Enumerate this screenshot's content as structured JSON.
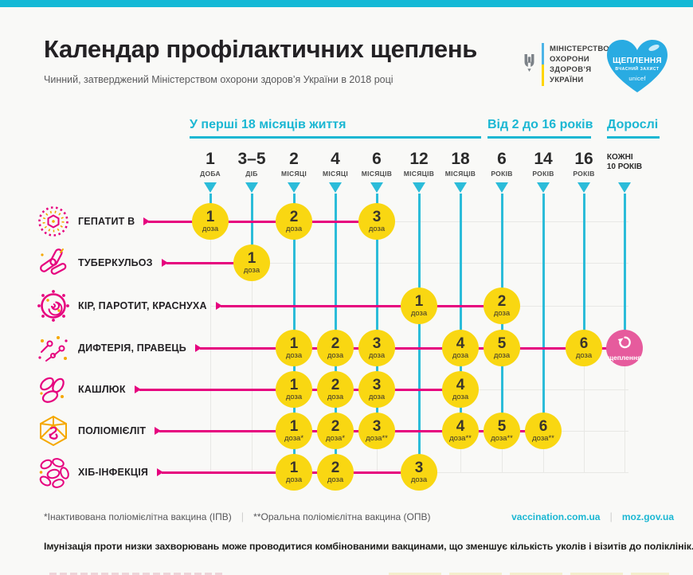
{
  "header": {
    "title": "Календар профілактичних щеплень",
    "subtitle": "Чинний, затверджений Міністерством охорони здоров’я України в 2018 році"
  },
  "logos": {
    "ministry_lines": [
      "МІНІСТЕРСТВО",
      "ОХОРОНИ",
      "ЗДОРОВ’Я",
      "УКРАЇНИ"
    ],
    "heart": {
      "line1": "ЩЕПЛЕННЯ",
      "line2": "ВЧАСНИЙ ЗАХИСТ",
      "brand": "unicef"
    }
  },
  "schedule": {
    "groups": [
      {
        "label": "У перші 18 місяців життя"
      },
      {
        "label": "Від 2 до 16 років"
      },
      {
        "label": "Дорослі"
      }
    ],
    "columns": [
      {
        "num": "1",
        "unit": "ДОБА"
      },
      {
        "num": "3–5",
        "unit": "ДІБ"
      },
      {
        "num": "2",
        "unit": "МІСЯЦІ"
      },
      {
        "num": "4",
        "unit": "МІСЯЦІ"
      },
      {
        "num": "6",
        "unit": "МІСЯЦІВ"
      },
      {
        "num": "12",
        "unit": "МІСЯЦІВ"
      },
      {
        "num": "18",
        "unit": "МІСЯЦІВ"
      },
      {
        "num": "6",
        "unit": "РОКІВ"
      },
      {
        "num": "14",
        "unit": "РОКІВ"
      },
      {
        "num": "16",
        "unit": "РОКІВ"
      },
      {
        "line1": "КОЖНІ",
        "line2": "10 РОКІВ"
      }
    ],
    "rows": [
      {
        "label": "ГЕПАТИТ В",
        "icon": "hepatitis-virus-icon",
        "doses": [
          {
            "col": 0,
            "n": "1",
            "sub": "доза"
          },
          {
            "col": 2,
            "n": "2",
            "sub": "доза"
          },
          {
            "col": 4,
            "n": "3",
            "sub": "доза"
          }
        ]
      },
      {
        "label": "ТУБЕРКУЛЬОЗ",
        "icon": "tuberculosis-bacteria-icon",
        "doses": [
          {
            "col": 1,
            "n": "1",
            "sub": "доза"
          }
        ]
      },
      {
        "label": "КІР, ПАРОТИТ, КРАСНУХА",
        "icon": "measles-virus-icon",
        "doses": [
          {
            "col": 5,
            "n": "1",
            "sub": "доза"
          },
          {
            "col": 7,
            "n": "2",
            "sub": "доза"
          }
        ]
      },
      {
        "label": "ДИФТЕРІЯ, ПРАВЕЦЬ",
        "icon": "diphtheria-bacteria-icon",
        "doses": [
          {
            "col": 2,
            "n": "1",
            "sub": "доза"
          },
          {
            "col": 3,
            "n": "2",
            "sub": "доза"
          },
          {
            "col": 4,
            "n": "3",
            "sub": "доза"
          },
          {
            "col": 6,
            "n": "4",
            "sub": "доза"
          },
          {
            "col": 7,
            "n": "5",
            "sub": "доза"
          },
          {
            "col": 9,
            "n": "6",
            "sub": "доза"
          }
        ],
        "booster": {
          "col": 10,
          "label": "щеплення"
        }
      },
      {
        "label": "КАШЛЮК",
        "icon": "pertussis-bacteria-icon",
        "doses": [
          {
            "col": 2,
            "n": "1",
            "sub": "доза"
          },
          {
            "col": 3,
            "n": "2",
            "sub": "доза"
          },
          {
            "col": 4,
            "n": "3",
            "sub": "доза"
          },
          {
            "col": 6,
            "n": "4",
            "sub": "доза"
          }
        ]
      },
      {
        "label": "ПОЛІОМІЄЛІТ",
        "icon": "polio-virus-icon",
        "doses": [
          {
            "col": 2,
            "n": "1",
            "sub": "доза*"
          },
          {
            "col": 3,
            "n": "2",
            "sub": "доза*"
          },
          {
            "col": 4,
            "n": "3",
            "sub": "доза**"
          },
          {
            "col": 6,
            "n": "4",
            "sub": "доза**"
          },
          {
            "col": 7,
            "n": "5",
            "sub": "доза**"
          },
          {
            "col": 8,
            "n": "6",
            "sub": "доза**"
          }
        ]
      },
      {
        "label": "ХІБ-ІНФЕКЦІЯ",
        "icon": "hib-bacteria-icon",
        "doses": [
          {
            "col": 2,
            "n": "1",
            "sub": "доза"
          },
          {
            "col": 3,
            "n": "2",
            "sub": "доза"
          },
          {
            "col": 5,
            "n": "3",
            "sub": "доза"
          }
        ]
      }
    ]
  },
  "footer": {
    "note1": "*Інактивована поліомієлітна вакцина (ІПВ)",
    "note2": "**Оральна поліомієлітна вакцина (ОПВ)",
    "separator": "|",
    "links": [
      "vaccination.com.ua",
      "moz.gov.ua"
    ],
    "bottom_note": "Імунізація проти низки захворювань може проводитися комбінованими вакцинами, що зменшує кількість уколів і візитів до поліклінік."
  },
  "colors": {
    "accent_cyan": "#14b9d6",
    "line_cyan": "#2bbcd9",
    "magenta": "#e6007e",
    "dose_yellow": "#f9d712",
    "booster_pink": "#e65b9d",
    "heart_blue": "#29abe2",
    "flag_blue": "#4db4e7",
    "flag_yellow": "#ffd500"
  }
}
